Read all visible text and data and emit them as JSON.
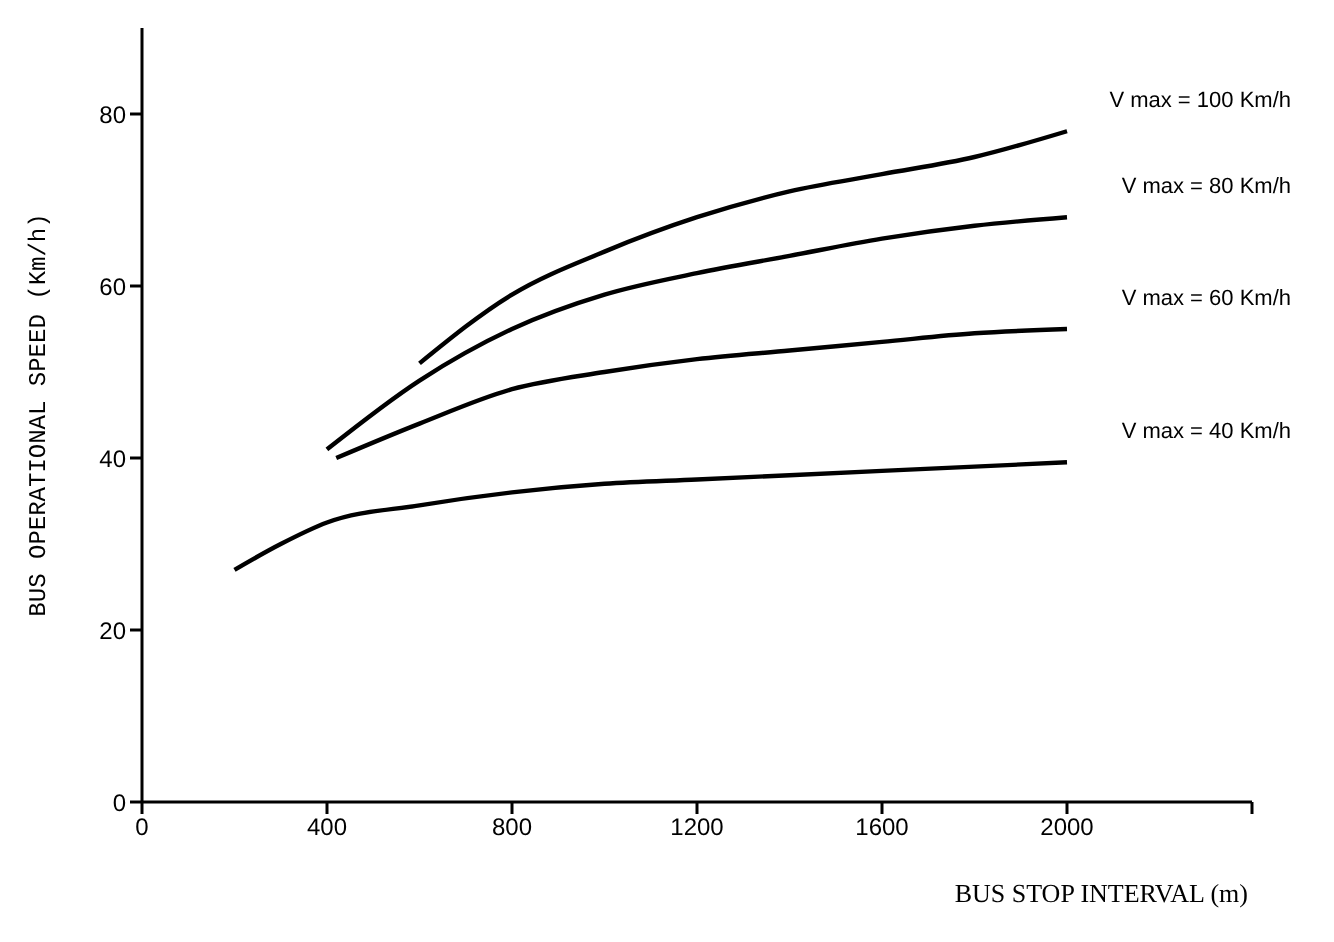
{
  "chart_data": {
    "type": "line",
    "xlabel": "BUS STOP INTERVAL (m)",
    "ylabel": "BUS OPERATIONAL SPEED (Km/h)",
    "xlim": [
      0,
      2400
    ],
    "xticks": [
      0,
      400,
      800,
      1200,
      1600,
      2000,
      {
        "value": 2400,
        "label": null
      }
    ],
    "ylim": [
      0,
      90
    ],
    "yticks": [
      0,
      20,
      40,
      60,
      80
    ],
    "grid": false,
    "legend": false,
    "marker": "none",
    "line_style": "solid",
    "series": [
      {
        "name": "V max = 100 Km/h",
        "color": "#000000",
        "x": [
          600,
          800,
          1000,
          1200,
          1400,
          1600,
          1800,
          2000
        ],
        "values": [
          51,
          59,
          64,
          68,
          71,
          73,
          75,
          78
        ]
      },
      {
        "name": "V max = 80 Km/h",
        "color": "#000000",
        "x": [
          400,
          600,
          800,
          1000,
          1200,
          1400,
          1600,
          1800,
          2000
        ],
        "values": [
          41,
          49,
          55,
          59,
          61.5,
          63.5,
          65.5,
          67,
          68
        ]
      },
      {
        "name": "V max = 60 Km/h",
        "color": "#000000",
        "x": [
          420,
          600,
          800,
          1000,
          1200,
          1400,
          1600,
          1800,
          2000
        ],
        "values": [
          40,
          44,
          48,
          50,
          51.5,
          52.5,
          53.5,
          54.5,
          55
        ]
      },
      {
        "name": "V max = 40 Km/h",
        "color": "#000000",
        "x": [
          200,
          300,
          400,
          600,
          800,
          1000,
          1200,
          1600,
          2000
        ],
        "values": [
          27,
          30,
          32.5,
          34.5,
          36,
          37,
          37.5,
          38.5,
          39.5
        ]
      }
    ]
  }
}
